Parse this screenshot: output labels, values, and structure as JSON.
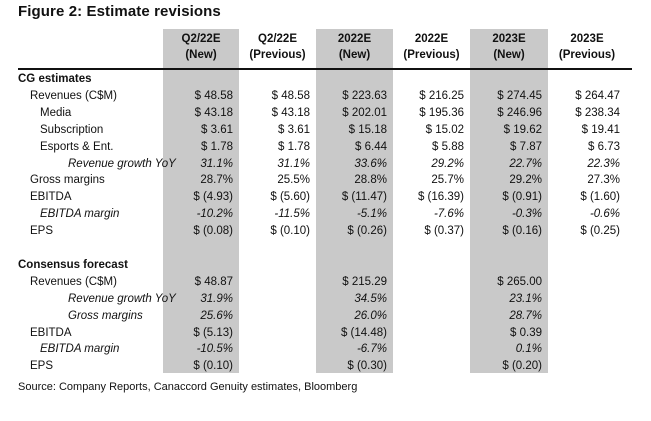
{
  "title": "Figure 2: Estimate revisions",
  "columns": [
    {
      "line1": "Q2/22E",
      "line2": "(New)",
      "shaded": true
    },
    {
      "line1": "Q2/22E",
      "line2": "(Previous)",
      "shaded": false
    },
    {
      "line1": "2022E",
      "line2": "(New)",
      "shaded": true
    },
    {
      "line1": "2022E",
      "line2": "(Previous)",
      "shaded": false
    },
    {
      "line1": "2023E",
      "line2": "(New)",
      "shaded": true
    },
    {
      "line1": "2023E",
      "line2": "(Previous)",
      "shaded": false
    }
  ],
  "rows": [
    {
      "label": "CG estimates",
      "style": "section",
      "values": [
        "",
        "",
        "",
        "",
        "",
        ""
      ]
    },
    {
      "label": "Revenues (C$M)",
      "style": "indent1",
      "values": [
        "$ 48.58",
        "$ 48.58",
        "$ 223.63",
        "$ 216.25",
        "$ 274.45",
        "$ 264.47"
      ]
    },
    {
      "label": "Media",
      "style": "indent2",
      "values": [
        "$ 43.18",
        "$ 43.18",
        "$ 202.01",
        "$ 195.36",
        "$ 246.96",
        "$ 238.34"
      ]
    },
    {
      "label": "Subscription",
      "style": "indent2",
      "values": [
        "$ 3.61",
        "$ 3.61",
        "$ 15.18",
        "$ 15.02",
        "$ 19.62",
        "$ 19.41"
      ]
    },
    {
      "label": "Esports & Ent.",
      "style": "indent2",
      "values": [
        "$ 1.78",
        "$ 1.78",
        "$ 6.44",
        "$ 5.88",
        "$ 7.87",
        "$ 6.73"
      ]
    },
    {
      "label": "Revenue growth YoY",
      "style": "italic2",
      "values": [
        "31.1%",
        "31.1%",
        "33.6%",
        "29.2%",
        "22.7%",
        "22.3%"
      ]
    },
    {
      "label": "Gross margins",
      "style": "indent1",
      "values": [
        "28.7%",
        "25.5%",
        "28.8%",
        "25.7%",
        "29.2%",
        "27.3%"
      ]
    },
    {
      "label": "EBITDA",
      "style": "indent1",
      "values": [
        "$ (4.93)",
        "$ (5.60)",
        "$ (11.47)",
        "$ (16.39)",
        "$ (0.91)",
        "$ (1.60)"
      ]
    },
    {
      "label": "EBITDA margin",
      "style": "italic1",
      "values": [
        "-10.2%",
        "-11.5%",
        "-5.1%",
        "-7.6%",
        "-0.3%",
        "-0.6%"
      ]
    },
    {
      "label": "EPS",
      "style": "indent1",
      "values": [
        "$ (0.08)",
        "$ (0.10)",
        "$ (0.26)",
        "$ (0.37)",
        "$ (0.16)",
        "$ (0.25)"
      ]
    },
    {
      "label": "",
      "style": "blank",
      "values": [
        "",
        "",
        "",
        "",
        "",
        ""
      ]
    },
    {
      "label": "Consensus forecast",
      "style": "section",
      "values": [
        "",
        "",
        "",
        "",
        "",
        ""
      ]
    },
    {
      "label": "Revenues (C$M)",
      "style": "indent1",
      "values": [
        "$ 48.87",
        "",
        "$ 215.29",
        "",
        "$ 265.00",
        ""
      ]
    },
    {
      "label": "Revenue growth YoY",
      "style": "italic2",
      "values": [
        "31.9%",
        "",
        "34.5%",
        "",
        "23.1%",
        ""
      ]
    },
    {
      "label": "Gross margins",
      "style": "italic2",
      "values": [
        "25.6%",
        "",
        "26.0%",
        "",
        "28.7%",
        ""
      ]
    },
    {
      "label": "EBITDA",
      "style": "indent1",
      "values": [
        "$ (5.13)",
        "",
        "$ (14.48)",
        "",
        "$ 0.39",
        ""
      ]
    },
    {
      "label": "EBITDA margin",
      "style": "italic1",
      "values": [
        "-10.5%",
        "",
        "-6.7%",
        "",
        "0.1%",
        ""
      ]
    },
    {
      "label": "EPS",
      "style": "indent1",
      "values": [
        "$ (0.10)",
        "",
        "$ (0.30)",
        "",
        "$ (0.20)",
        ""
      ]
    }
  ],
  "source": "Source: Company Reports, Canaccord Genuity estimates, Bloomberg"
}
